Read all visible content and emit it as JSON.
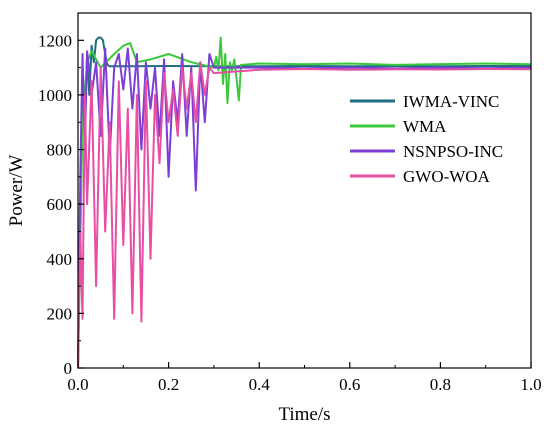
{
  "chart_data": {
    "type": "line",
    "xlabel": "Time/s",
    "ylabel": "Power/W",
    "xlim": [
      0,
      1.0
    ],
    "ylim": [
      0,
      1300
    ],
    "xticks": [
      "0.0",
      "0.2",
      "0.4",
      "0.6",
      "0.8",
      "1.0"
    ],
    "yticks": [
      "0",
      "200",
      "400",
      "600",
      "800",
      "1000",
      "1200"
    ],
    "grid": false,
    "legend_position": "right",
    "series": [
      {
        "name": "IWMA-VINC",
        "color": "#1f6e80",
        "x": [
          0.0,
          0.005,
          0.01,
          0.015,
          0.02,
          0.025,
          0.03,
          0.035,
          0.04,
          0.045,
          0.05,
          0.055,
          0.06,
          0.065,
          0.07,
          0.1,
          0.2,
          0.3,
          0.4,
          0.5,
          0.6,
          0.7,
          0.8,
          0.9,
          1.0
        ],
        "values": [
          0,
          600,
          1100,
          900,
          1150,
          1000,
          1180,
          1120,
          1200,
          1210,
          1210,
          1200,
          1150,
          1110,
          1105,
          1105,
          1106,
          1105,
          1105,
          1106,
          1105,
          1106,
          1105,
          1106,
          1106
        ]
      },
      {
        "name": "WMA",
        "color": "#3cc83c",
        "x": [
          0.0,
          0.01,
          0.02,
          0.03,
          0.05,
          0.08,
          0.1,
          0.115,
          0.13,
          0.16,
          0.2,
          0.25,
          0.3,
          0.305,
          0.31,
          0.315,
          0.32,
          0.325,
          0.33,
          0.335,
          0.34,
          0.345,
          0.35,
          0.355,
          0.36,
          0.4,
          0.5,
          0.6,
          0.7,
          0.8,
          0.9,
          1.0
        ],
        "values": [
          0,
          900,
          1120,
          1160,
          1100,
          1150,
          1180,
          1190,
          1120,
          1130,
          1150,
          1120,
          1100,
          1140,
          1090,
          1210,
          1040,
          1150,
          970,
          1120,
          1090,
          1130,
          1060,
          980,
          1110,
          1115,
          1112,
          1115,
          1110,
          1113,
          1115,
          1112
        ]
      },
      {
        "name": "NSNPSO-INC",
        "color": "#7b3fd6",
        "x": [
          0.0,
          0.005,
          0.01,
          0.015,
          0.02,
          0.03,
          0.04,
          0.05,
          0.06,
          0.07,
          0.08,
          0.09,
          0.1,
          0.11,
          0.12,
          0.13,
          0.14,
          0.15,
          0.16,
          0.17,
          0.18,
          0.19,
          0.2,
          0.21,
          0.22,
          0.23,
          0.24,
          0.25,
          0.26,
          0.27,
          0.28,
          0.29,
          0.3,
          0.4,
          0.5,
          0.6,
          0.7,
          0.8,
          0.9,
          1.0
        ],
        "values": [
          0,
          700,
          1150,
          800,
          1160,
          1000,
          1120,
          850,
          1170,
          780,
          1100,
          1150,
          1020,
          1170,
          950,
          1150,
          800,
          1120,
          950,
          1100,
          850,
          1130,
          700,
          1050,
          900,
          1150,
          850,
          1100,
          650,
          1120,
          900,
          1150,
          1100,
          1100,
          1098,
          1100,
          1097,
          1100,
          1098,
          1100
        ]
      },
      {
        "name": "GWO-WOA",
        "color": "#e64fa3",
        "x": [
          0.0,
          0.005,
          0.01,
          0.015,
          0.02,
          0.03,
          0.04,
          0.05,
          0.06,
          0.07,
          0.08,
          0.09,
          0.1,
          0.11,
          0.12,
          0.13,
          0.14,
          0.15,
          0.16,
          0.17,
          0.18,
          0.19,
          0.2,
          0.21,
          0.22,
          0.23,
          0.24,
          0.25,
          0.26,
          0.27,
          0.28,
          0.29,
          0.3,
          0.4,
          0.5,
          0.6,
          0.7,
          0.8,
          0.9,
          1.0
        ],
        "values": [
          0,
          500,
          180,
          1000,
          600,
          1050,
          300,
          1100,
          500,
          900,
          180,
          1050,
          450,
          950,
          200,
          1000,
          170,
          1050,
          400,
          1000,
          750,
          1080,
          900,
          1020,
          850,
          1100,
          950,
          1080,
          900,
          1120,
          1000,
          1100,
          1080,
          1092,
          1095,
          1092,
          1094,
          1093,
          1095,
          1094
        ]
      }
    ]
  }
}
